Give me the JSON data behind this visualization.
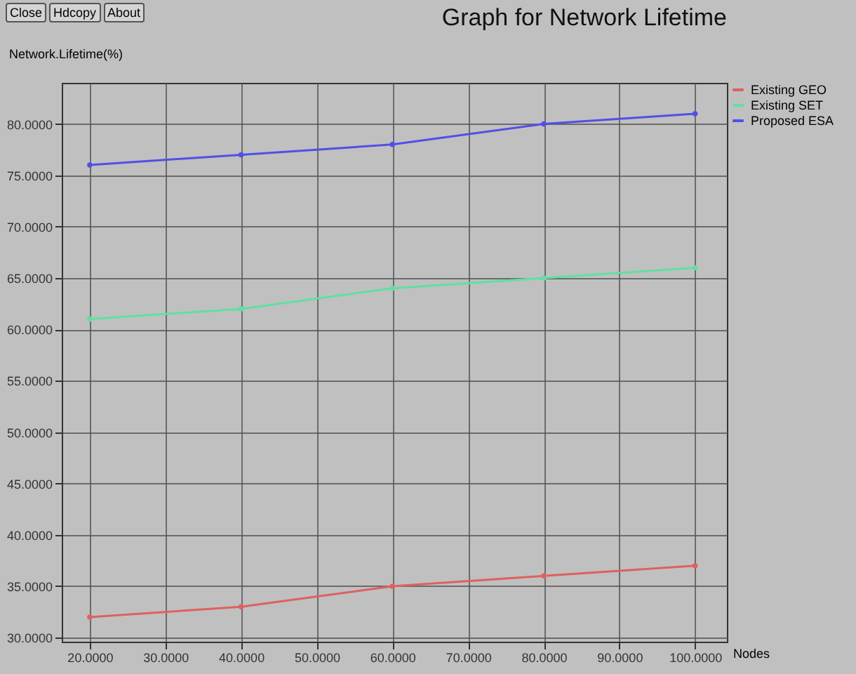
{
  "chart_data": {
    "type": "line",
    "title": "Graph for Network Lifetime",
    "ylabel": "Network.Lifetime(%)",
    "xlabel": "Nodes",
    "annotations": [
      "Close",
      "Hdcopy",
      "About"
    ],
    "x": [
      20,
      40,
      60,
      80,
      100
    ],
    "series": [
      {
        "name": "Existing GEO",
        "color": "#e06060",
        "values": [
          32,
          33,
          35,
          36,
          37
        ]
      },
      {
        "name": "Existing SET",
        "color": "#60e0a0",
        "values": [
          61,
          62,
          64,
          65,
          66
        ]
      },
      {
        "name": "Proposed ESA",
        "color": "#5050e8",
        "values": [
          76,
          77,
          78,
          80,
          81
        ]
      }
    ],
    "xlim": [
      16.3,
      104.2
    ],
    "ylim": [
      29.6,
      84
    ],
    "xticks": [
      {
        "value": 20,
        "label": "20.0000"
      },
      {
        "value": 30,
        "label": "30.0000"
      },
      {
        "value": 40,
        "label": "40.0000"
      },
      {
        "value": 50,
        "label": "50.0000"
      },
      {
        "value": 60,
        "label": "60.0000"
      },
      {
        "value": 70,
        "label": "70.0000"
      },
      {
        "value": 80,
        "label": "80.0000"
      },
      {
        "value": 90,
        "label": "90.0000"
      },
      {
        "value": 100,
        "label": "100.0000"
      }
    ],
    "yticks": [
      {
        "value": 30,
        "label": "30.0000"
      },
      {
        "value": 35,
        "label": "35.0000"
      },
      {
        "value": 40,
        "label": "40.0000"
      },
      {
        "value": 45,
        "label": "45.0000"
      },
      {
        "value": 50,
        "label": "50.0000"
      },
      {
        "value": 55,
        "label": "55.0000"
      },
      {
        "value": 60,
        "label": "60.0000"
      },
      {
        "value": 65,
        "label": "65.0000"
      },
      {
        "value": 70,
        "label": "70.0000"
      },
      {
        "value": 75,
        "label": "75.0000"
      },
      {
        "value": 80,
        "label": "80.0000"
      }
    ],
    "grid": true,
    "legend": "top right",
    "marker": "circle",
    "line_style": "solid"
  }
}
